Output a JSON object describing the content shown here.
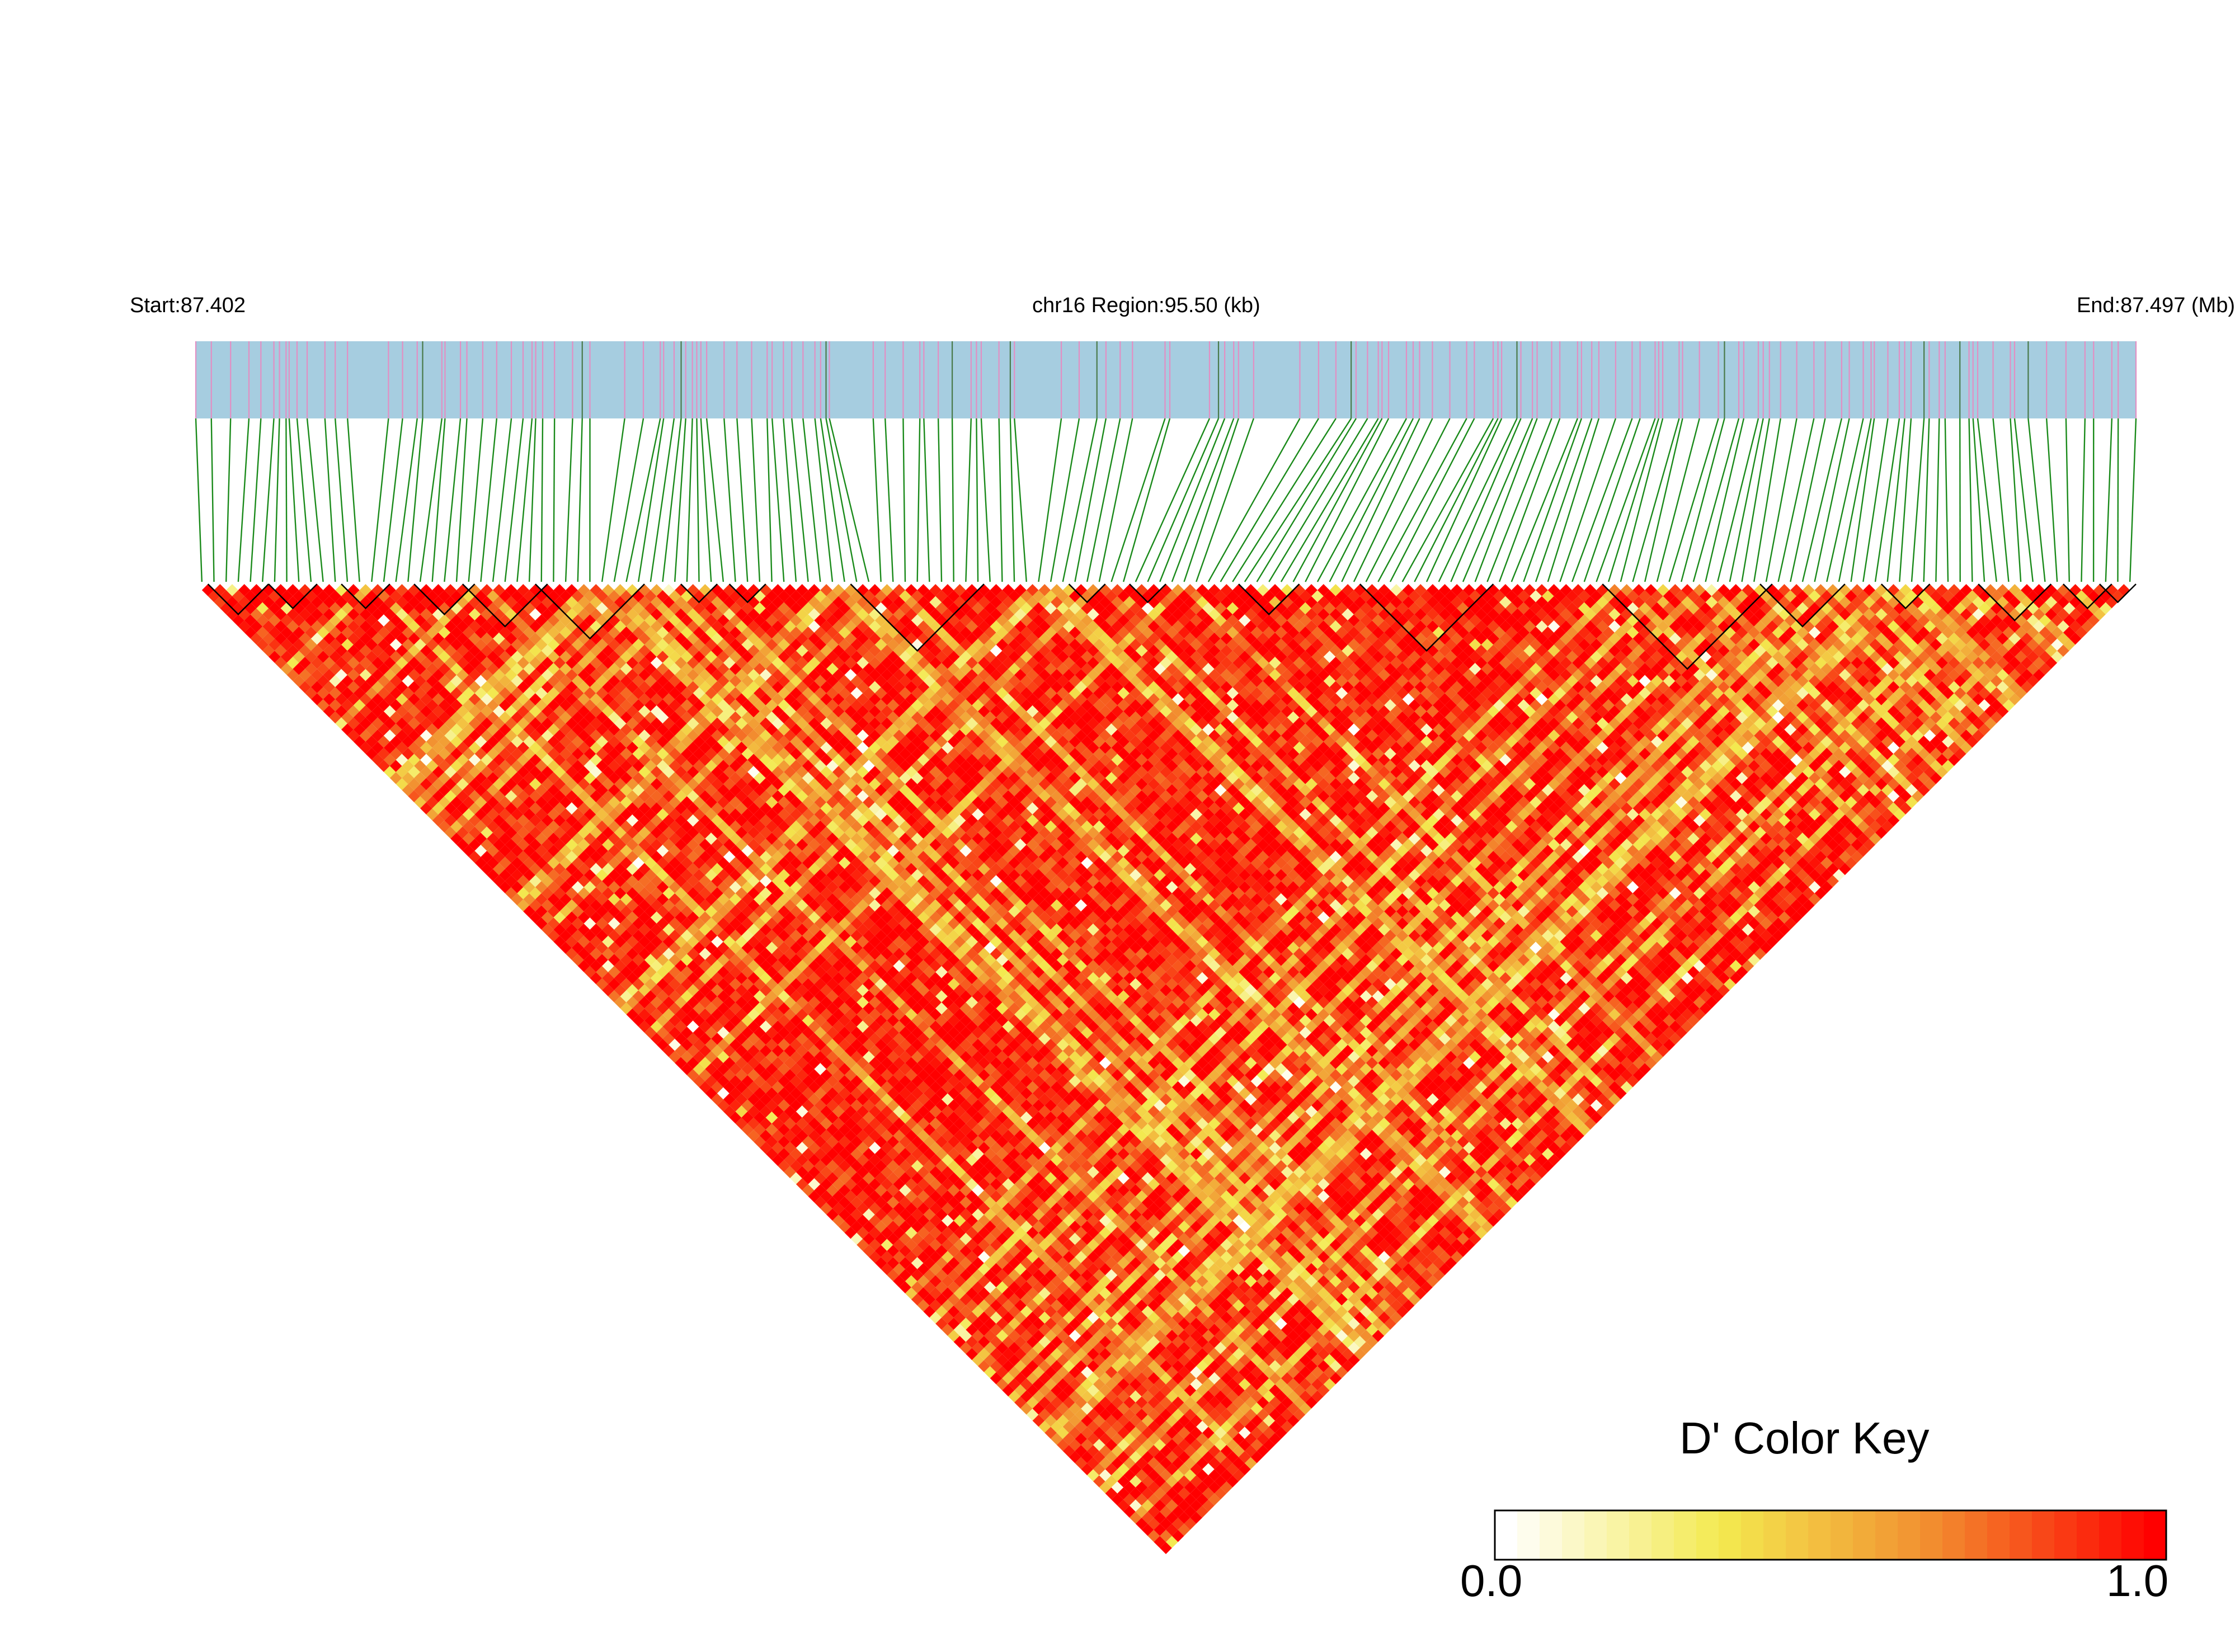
{
  "chart_data": {
    "type": "heatmap",
    "description_type": "LD triangle heatmap (Haploview-style)",
    "header": {
      "start": "Start:87.402",
      "region": "chr16 Region:95.50 (kb)",
      "end": "End:87.497 (Mb)"
    },
    "snp_count": 160,
    "color_key": {
      "title": "D' Color Key",
      "min_label": "0.0",
      "max_label": "1.0",
      "range": [
        0.0,
        1.0
      ],
      "gradient": [
        "#ffffff",
        "#f3e94f",
        "#f28a2e",
        "#ff0000"
      ]
    },
    "colors": {
      "track_bg": "#a6cde0",
      "snp_marker": "#e28fc3",
      "snp_marker_alt": "#4a7a4a",
      "connector": "#1a8a1a",
      "block_outline": "#000000"
    },
    "ld_blocks_snp_index_ranges": [
      [
        1,
        5
      ],
      [
        6,
        9
      ],
      [
        12,
        15
      ],
      [
        18,
        22
      ],
      [
        22,
        28
      ],
      [
        28,
        36
      ],
      [
        40,
        42
      ],
      [
        44,
        46
      ],
      [
        54,
        64
      ],
      [
        72,
        74
      ],
      [
        77,
        79
      ],
      [
        86,
        90
      ],
      [
        96,
        106
      ],
      [
        116,
        129
      ],
      [
        129,
        135
      ],
      [
        139,
        142
      ],
      [
        147,
        152
      ],
      [
        154,
        157
      ],
      [
        157,
        159
      ]
    ],
    "value_distribution": {
      "mean_d_prime": 0.85,
      "note": ""
    }
  }
}
